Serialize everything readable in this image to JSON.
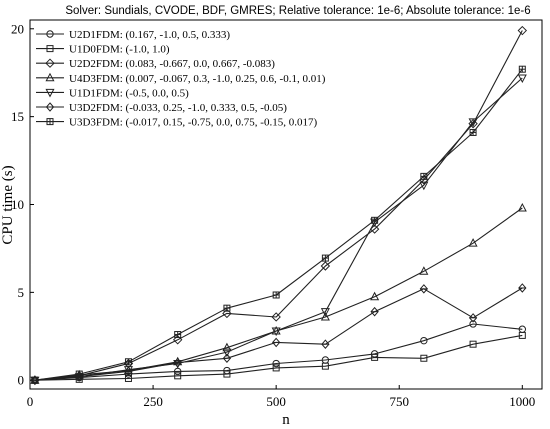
{
  "chart_data": {
    "type": "line",
    "title": "Solver: Sundials, CVODE, BDF, GMRES; Relative tolerance: 1e-6; Absolute tolerance: 1e-6",
    "xlabel": "n",
    "ylabel": "CPU time (s)",
    "xlim": [
      0,
      1040
    ],
    "ylim": [
      -0.5,
      20.5
    ],
    "xticks": [
      "0",
      "250",
      "500",
      "750",
      "1000"
    ],
    "yticks": [
      "0",
      "5",
      "10",
      "15",
      "20"
    ],
    "grid": false,
    "legend_position": "top-left",
    "x": [
      10,
      100,
      200,
      300,
      400,
      500,
      600,
      700,
      800,
      900,
      1000
    ],
    "series": [
      {
        "name": "U2D1FDM: (0.167, -1.0, 0.5, 0.333)",
        "marker": "circle",
        "values": [
          0.0,
          0.15,
          0.35,
          0.5,
          0.55,
          0.95,
          1.15,
          1.5,
          2.25,
          3.2,
          2.9
        ]
      },
      {
        "name": "U1D0FDM: (-1.0, 1.0)",
        "marker": "square",
        "values": [
          0.0,
          0.05,
          0.1,
          0.25,
          0.35,
          0.7,
          0.8,
          1.3,
          1.25,
          2.05,
          2.55
        ]
      },
      {
        "name": "U2D2FDM: (0.083, -0.667, 0.0, 0.667, -0.083)",
        "marker": "diamond",
        "values": [
          0.0,
          0.25,
          0.95,
          2.3,
          3.8,
          3.6,
          6.5,
          8.6,
          11.4,
          14.6,
          19.9
        ]
      },
      {
        "name": "U4D3FDM: (0.007, -0.067, 0.3, -1.0, 0.25, 0.6, -0.1, 0.01)",
        "marker": "triangle-up",
        "values": [
          0.0,
          0.3,
          0.55,
          1.05,
          1.85,
          2.8,
          3.6,
          4.75,
          6.2,
          7.8,
          9.8
        ]
      },
      {
        "name": "U1D1FDM: (-0.5, 0.0, 0.5)",
        "marker": "triangle-down",
        "values": [
          0.0,
          0.2,
          0.6,
          0.95,
          1.6,
          2.8,
          3.9,
          9.0,
          11.1,
          14.7,
          17.2
        ]
      },
      {
        "name": "U3D2FDM: (-0.033, 0.25, -1.0, 0.333, 0.5, -0.05)",
        "marker": "thin-diamond",
        "values": [
          0.0,
          0.2,
          0.5,
          1.0,
          1.25,
          2.15,
          2.05,
          3.9,
          5.2,
          3.55,
          5.25
        ]
      },
      {
        "name": "U3D3FDM: (-0.017, 0.15, -0.75, 0.0, 0.75, -0.15, 0.017)",
        "marker": "square-cross",
        "values": [
          0.0,
          0.35,
          1.05,
          2.6,
          4.1,
          4.85,
          6.95,
          9.1,
          11.6,
          14.1,
          17.7
        ]
      }
    ]
  }
}
